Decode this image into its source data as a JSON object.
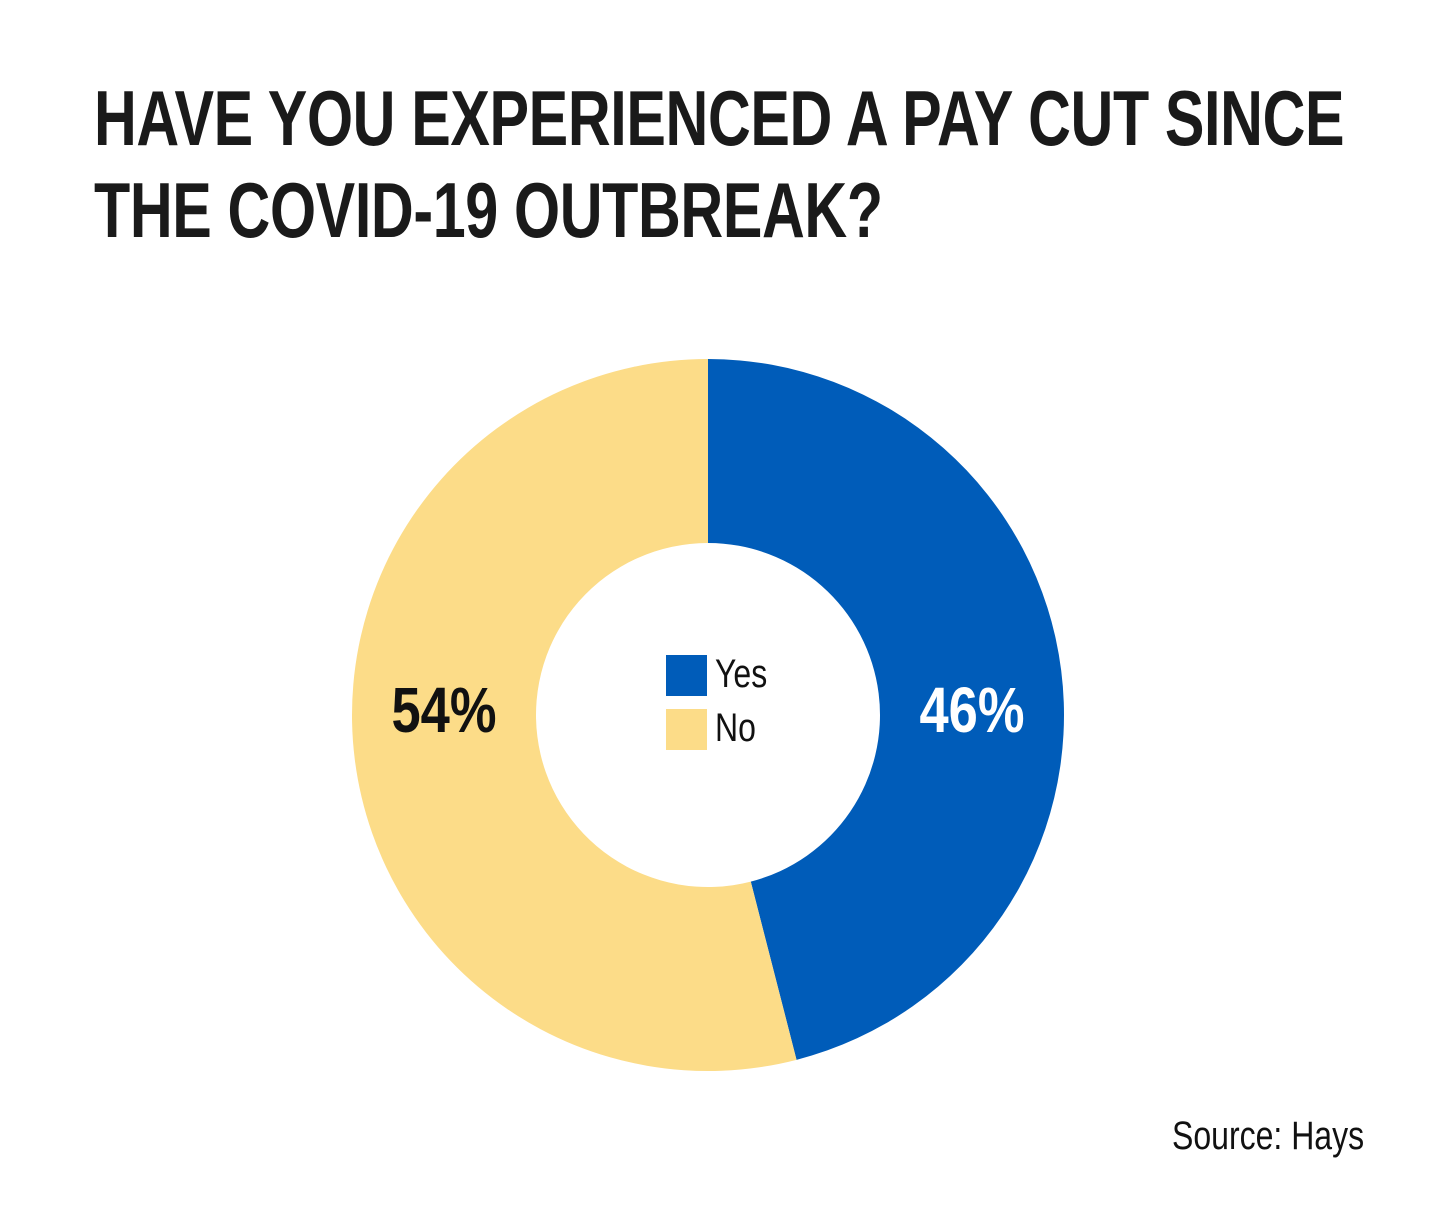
{
  "chart_data": {
    "type": "pie",
    "title_lines": [
      "HAVE YOU EXPERIENCED A PAY CUT SINCE",
      "THE COVID-19 OUTBREAK?"
    ],
    "slices": [
      {
        "label": "Yes",
        "value": 46,
        "value_label": "46%",
        "color": "#005cb9",
        "label_color": "#ffffff"
      },
      {
        "label": "No",
        "value": 54,
        "value_label": "54%",
        "color": "#fcdc88",
        "label_color": "#111111"
      }
    ],
    "donut": true,
    "legend_position": "center"
  },
  "source": "Source: Hays"
}
